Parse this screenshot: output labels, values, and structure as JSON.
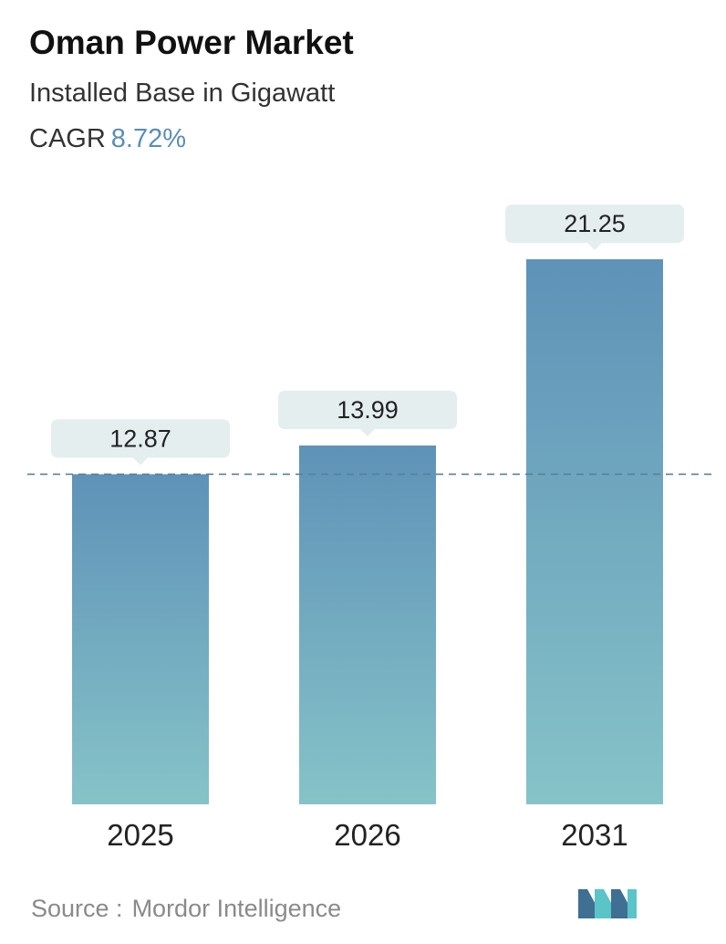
{
  "header": {
    "title": "Oman Power Market",
    "subtitle": "Installed Base in Gigawatt",
    "cagr_label": "CAGR",
    "cagr_value": "8.72%"
  },
  "footer": {
    "source_label": "Source :",
    "source_name": "Mordor Intelligence"
  },
  "colors": {
    "bar_top": "#5f92b8",
    "bar_bottom": "#86c3c8",
    "label_bg": "#e4eeef",
    "dashed_line": "#5a7f9c",
    "logo_dark": "#3f6f93",
    "logo_light": "#5bc4c9"
  },
  "chart_data": {
    "type": "bar",
    "categories": [
      "2025",
      "2026",
      "2031"
    ],
    "values": [
      12.87,
      13.99,
      21.25
    ],
    "value_labels": [
      "12.87",
      "13.99",
      "21.25"
    ],
    "reference_line": 12.87,
    "grid": false,
    "legend": "none"
  }
}
